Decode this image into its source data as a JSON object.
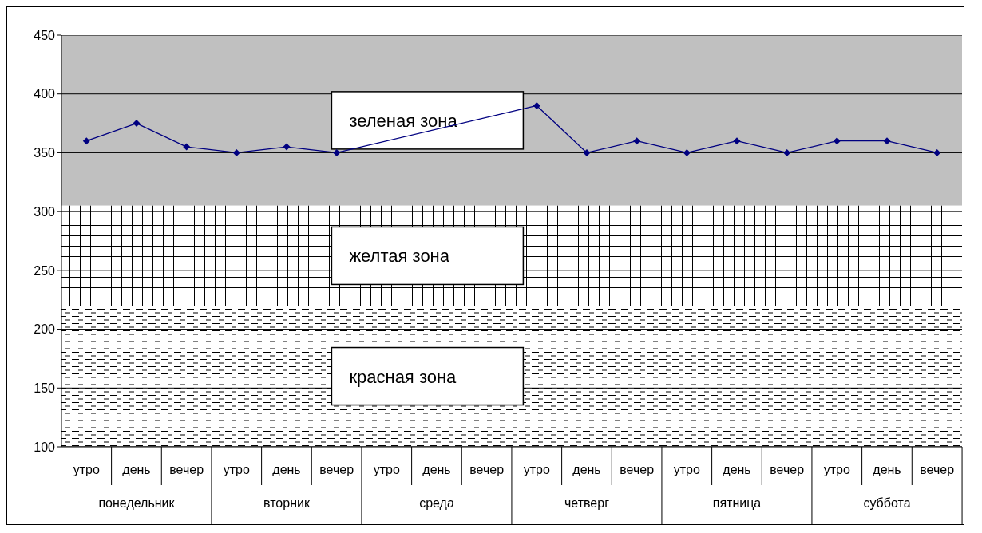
{
  "chart_data": {
    "type": "line",
    "categories": [
      "утро",
      "день",
      "вечер",
      "утро",
      "день",
      "вечер",
      "утро",
      "день",
      "вечер",
      "утро",
      "день",
      "вечер",
      "утро",
      "день",
      "вечер",
      "утро",
      "день",
      "вечер"
    ],
    "series": [
      {
        "color": "#000080",
        "values": [
          360,
          375,
          355,
          350,
          355,
          350,
          null,
          null,
          null,
          390,
          350,
          360,
          350,
          360,
          350,
          360,
          360,
          350
        ]
      }
    ],
    "annotations": [
      "понедельник",
      "вторник",
      "среда",
      "четверг",
      "пятница",
      "суббота"
    ],
    "ylim": [
      100,
      450
    ],
    "yticks": [
      100,
      150,
      200,
      250,
      300,
      350,
      400,
      450
    ],
    "bands": [
      {
        "axis": "y",
        "from": 305,
        "to": 450,
        "label": "зеленая зона",
        "color": "#c0c0c0"
      },
      {
        "axis": "y",
        "from": 220,
        "to": 305,
        "label": "желтая зона",
        "color": "#ffffff"
      },
      {
        "axis": "y",
        "from": 100,
        "to": 220,
        "label": "красная зона",
        "color": "#ffffff"
      }
    ],
    "grid": "y",
    "marker": "diamond",
    "line_style": "solid",
    "legend": false
  }
}
